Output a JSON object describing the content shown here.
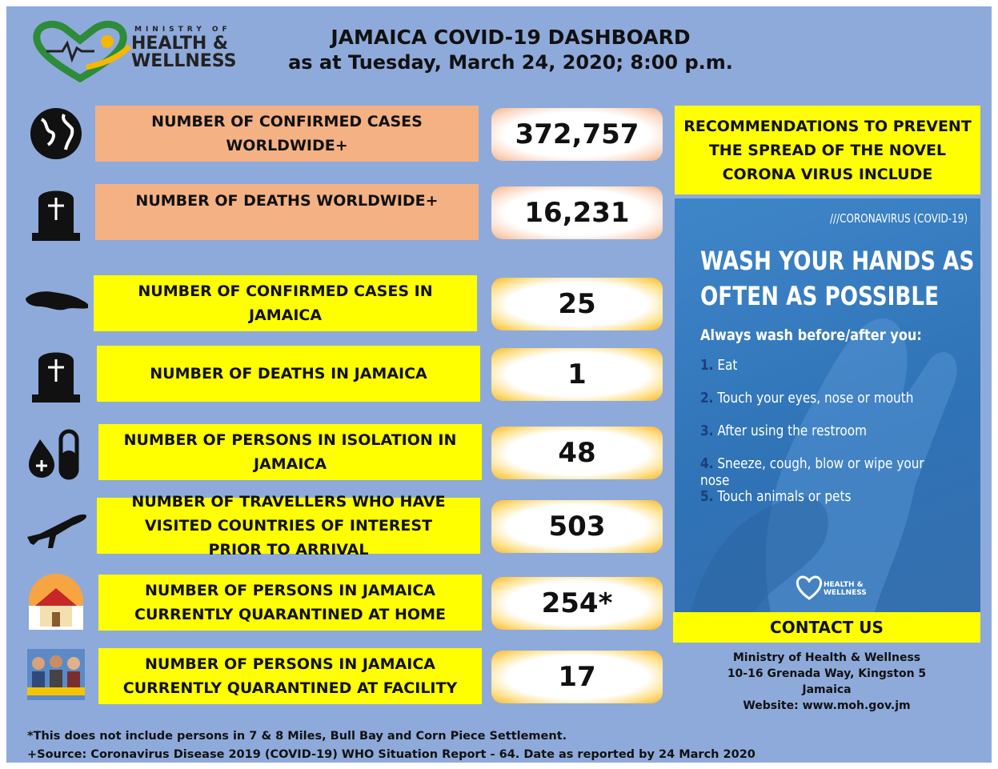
{
  "header": {
    "logo": {
      "top": "MINISTRY OF",
      "line1": "HEALTH &",
      "line2": "WELLNESS"
    },
    "title": "JAMAICA COVID-19 DASHBOARD",
    "subtitle": "as at Tuesday, March 24, 2020; 8:00 p.m."
  },
  "stats": [
    {
      "label": "NUMBER OF CONFIRMED CASES WORLDWIDE+",
      "value": "372,757"
    },
    {
      "label": "NUMBER OF DEATHS WORLDWIDE+",
      "value": "16,231"
    },
    {
      "label": "NUMBER OF CONFIRMED CASES IN JAMAICA",
      "value": "25"
    },
    {
      "label": "NUMBER OF DEATHS IN JAMAICA",
      "value": "1"
    },
    {
      "label": "NUMBER OF PERSONS IN ISOLATION IN JAMAICA",
      "value": "48"
    },
    {
      "label": "NUMBER OF TRAVELLERS WHO HAVE VISITED COUNTRIES OF INTEREST PRIOR TO ARRIVAL",
      "value": "503"
    },
    {
      "label": "NUMBER OF PERSONS IN JAMAICA CURRENTLY QUARANTINED AT HOME",
      "value": "254*"
    },
    {
      "label": "NUMBER OF PERSONS IN JAMAICA CURRENTLY QUARANTINED AT FACILITY",
      "value": "17"
    }
  ],
  "recommendations": {
    "title": "RECOMMENDATIONS TO PREVENT THE SPREAD OF THE NOVEL CORONA VIRUS INCLUDE",
    "poster": {
      "tag": "///CORONAVIRUS (COVID-19)",
      "headline": "WASH YOUR HANDS AS OFTEN AS POSSIBLE",
      "intro": "Always wash before/after you:",
      "items": [
        {
          "num": "1.",
          "text": "Eat"
        },
        {
          "num": "2.",
          "text": "Touch your eyes, nose or mouth"
        },
        {
          "num": "3.",
          "text": "After using the restroom"
        },
        {
          "num": "4.",
          "text": "Sneeze, cough, blow or wipe your nose"
        },
        {
          "num": "5.",
          "text": "Touch animals or pets"
        }
      ],
      "logo": {
        "line1": "HEALTH &",
        "line2": "WELLNESS"
      }
    }
  },
  "contact": {
    "title": "CONTACT US",
    "lines": [
      "Ministry of Health & Wellness",
      "10-16 Grenada Way, Kingston 5",
      "Jamaica",
      "Website: www.moh.gov.jm"
    ]
  },
  "footnotes": [
    "*This does not include persons in 7 & 8 Miles, Bull Bay  and Corn Piece Settlement.",
    "+Source: Coronavirus Disease 2019 (COVID-19) WHO Situation Report - 64. Date as reported by 24 March 2020"
  ]
}
